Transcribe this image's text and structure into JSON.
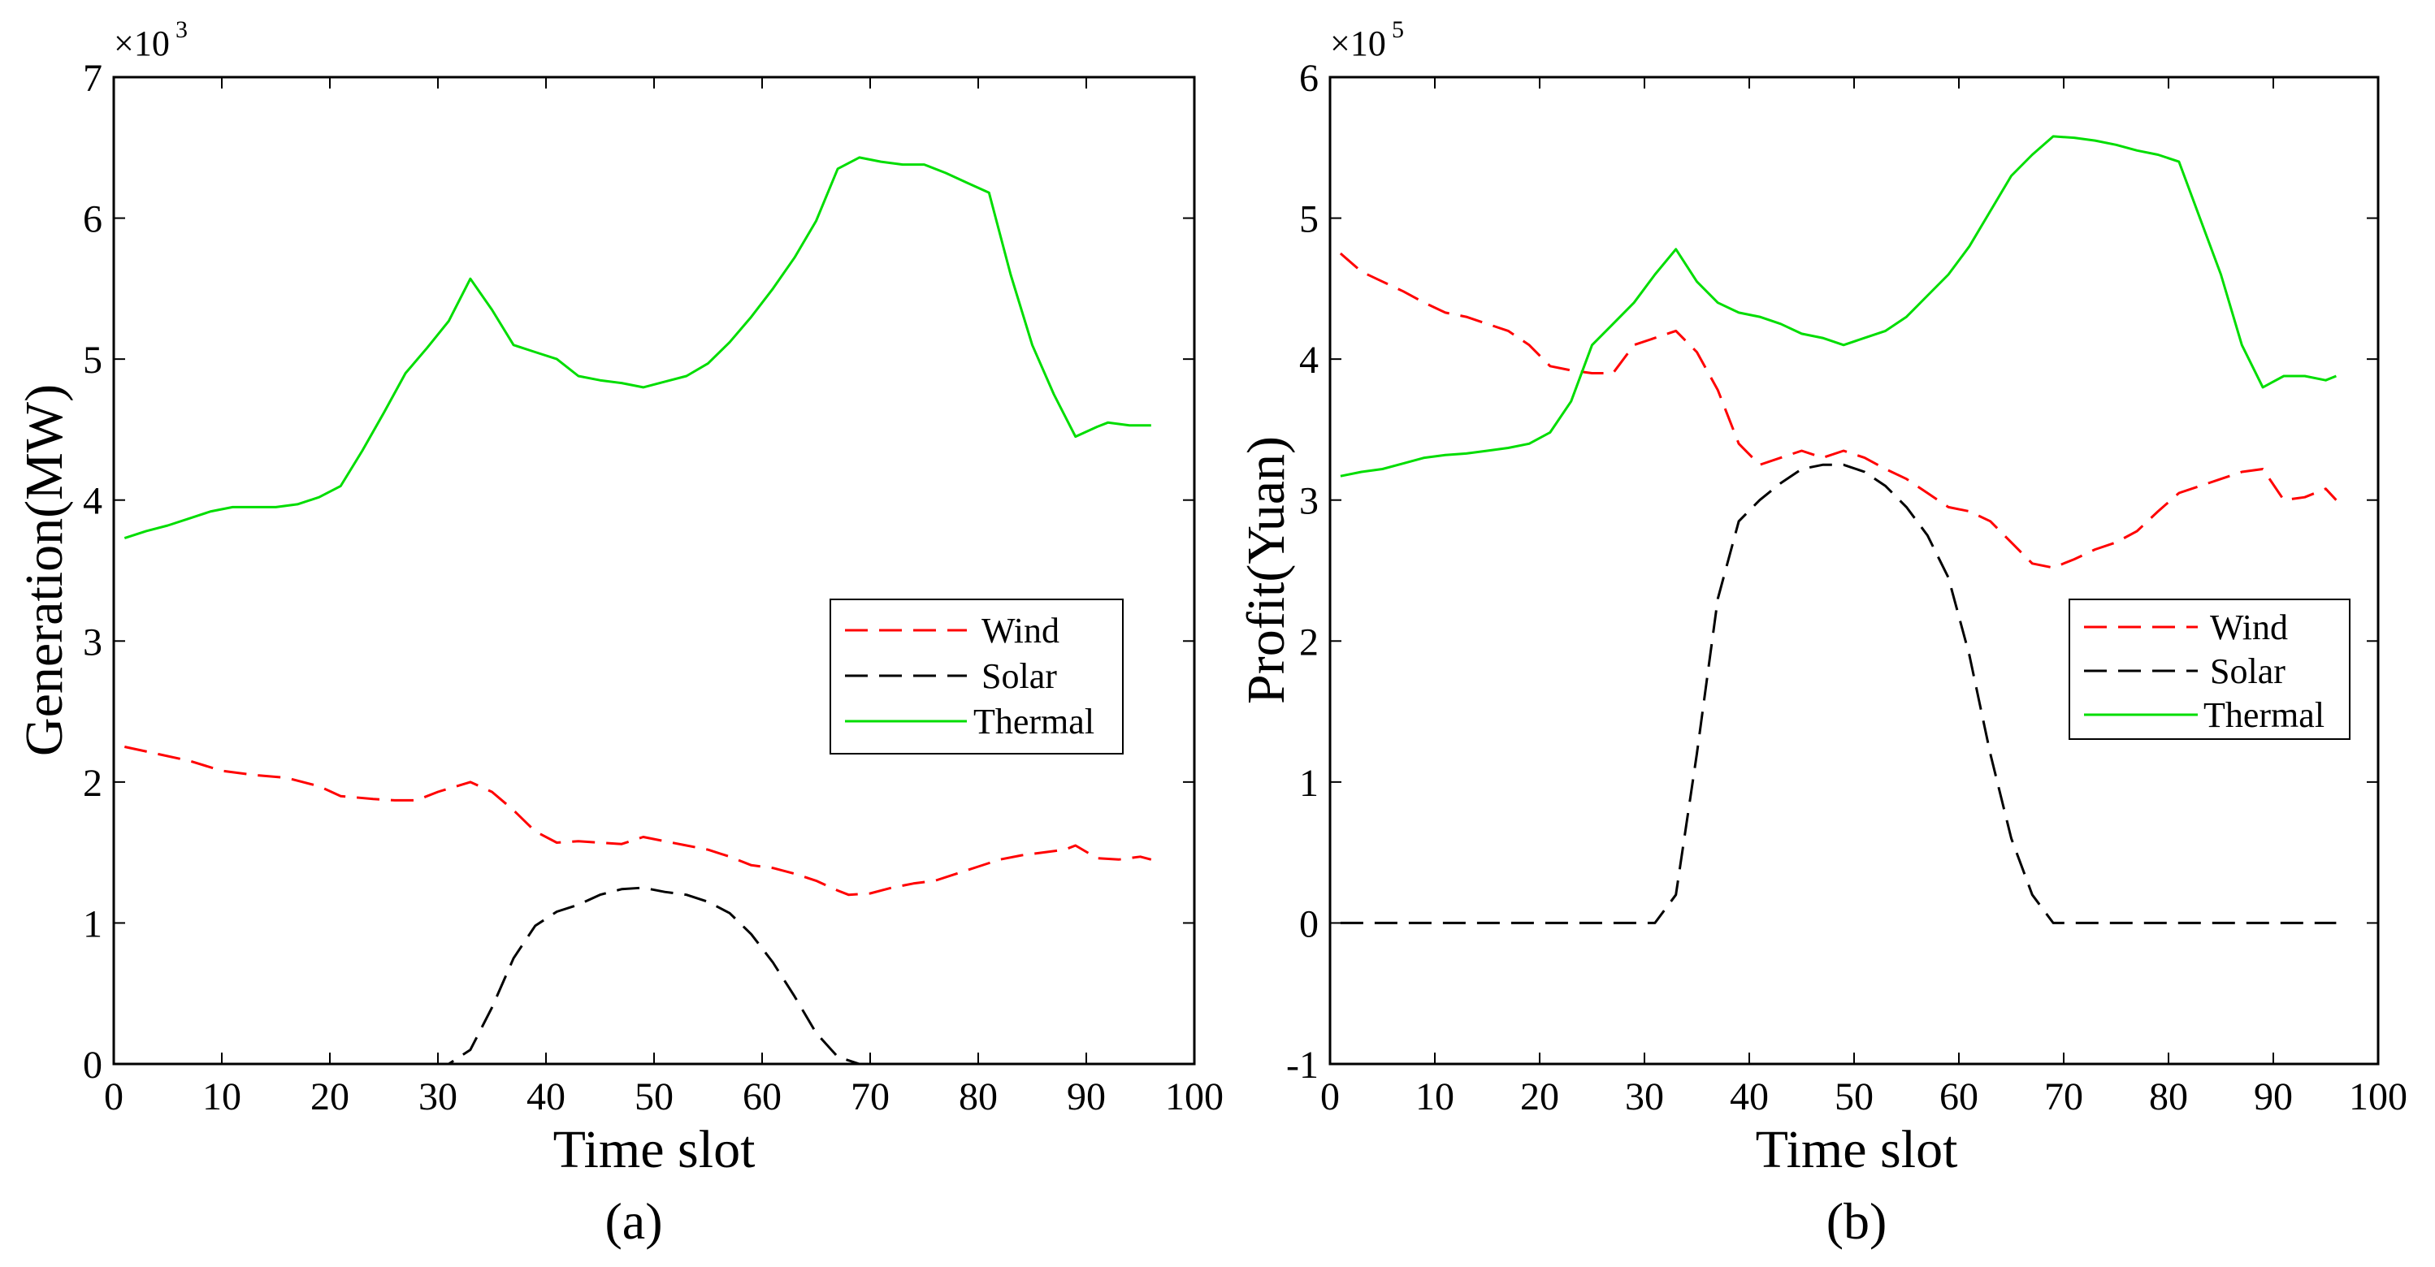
{
  "chart_data": [
    {
      "id": "a",
      "type": "line",
      "caption": "(a)",
      "xlabel": "Time slot",
      "ylabel": "Generation(MW)",
      "y_scale_base": "×10",
      "y_scale_exp": "3",
      "xlim": [
        0,
        100
      ],
      "ylim": [
        0,
        7
      ],
      "xticks": [
        0,
        10,
        20,
        30,
        40,
        50,
        60,
        70,
        80,
        90,
        100
      ],
      "yticks": [
        0,
        1,
        2,
        3,
        4,
        5,
        6,
        7
      ],
      "legend": {
        "position": "right-middle",
        "entries": [
          "Wind",
          "Solar",
          "Thermal"
        ]
      },
      "series": [
        {
          "name": "Wind",
          "color": "#ff0000",
          "dash": "dashed",
          "points": [
            [
              1,
              2.25
            ],
            [
              4,
              2.2
            ],
            [
              7,
              2.15
            ],
            [
              10,
              2.08
            ],
            [
              13,
              2.05
            ],
            [
              16,
              2.03
            ],
            [
              19,
              1.97
            ],
            [
              21,
              1.9
            ],
            [
              24,
              1.88
            ],
            [
              26,
              1.87
            ],
            [
              28,
              1.87
            ],
            [
              30,
              1.93
            ],
            [
              33,
              2.0
            ],
            [
              35,
              1.93
            ],
            [
              37,
              1.8
            ],
            [
              39,
              1.65
            ],
            [
              41,
              1.57
            ],
            [
              43,
              1.58
            ],
            [
              45,
              1.57
            ],
            [
              47,
              1.56
            ],
            [
              49,
              1.61
            ],
            [
              51,
              1.58
            ],
            [
              53,
              1.55
            ],
            [
              55,
              1.52
            ],
            [
              57,
              1.47
            ],
            [
              59,
              1.41
            ],
            [
              61,
              1.39
            ],
            [
              63,
              1.35
            ],
            [
              65,
              1.3
            ],
            [
              67,
              1.23
            ],
            [
              68,
              1.2
            ],
            [
              70,
              1.21
            ],
            [
              72,
              1.25
            ],
            [
              74,
              1.28
            ],
            [
              76,
              1.3
            ],
            [
              78,
              1.35
            ],
            [
              80,
              1.4
            ],
            [
              82,
              1.45
            ],
            [
              84,
              1.48
            ],
            [
              86,
              1.5
            ],
            [
              88,
              1.52
            ],
            [
              89,
              1.55
            ],
            [
              91,
              1.46
            ],
            [
              93,
              1.45
            ],
            [
              95,
              1.47
            ],
            [
              96,
              1.45
            ]
          ]
        },
        {
          "name": "Solar",
          "color": "#000000",
          "dash": "dashed",
          "points": [
            [
              1,
              0
            ],
            [
              31,
              0
            ],
            [
              33,
              0.1
            ],
            [
              35,
              0.4
            ],
            [
              37,
              0.75
            ],
            [
              39,
              0.98
            ],
            [
              41,
              1.08
            ],
            [
              43,
              1.13
            ],
            [
              45,
              1.2
            ],
            [
              47,
              1.24
            ],
            [
              49,
              1.25
            ],
            [
              51,
              1.22
            ],
            [
              53,
              1.2
            ],
            [
              55,
              1.15
            ],
            [
              57,
              1.07
            ],
            [
              59,
              0.92
            ],
            [
              61,
              0.72
            ],
            [
              63,
              0.48
            ],
            [
              65,
              0.22
            ],
            [
              67,
              0.05
            ],
            [
              69,
              0
            ],
            [
              96,
              0
            ]
          ]
        },
        {
          "name": "Thermal",
          "color": "#00dd00",
          "dash": "solid",
          "points": [
            [
              1,
              3.73
            ],
            [
              3,
              3.78
            ],
            [
              5,
              3.82
            ],
            [
              7,
              3.87
            ],
            [
              9,
              3.92
            ],
            [
              11,
              3.95
            ],
            [
              13,
              3.95
            ],
            [
              15,
              3.95
            ],
            [
              17,
              3.97
            ],
            [
              19,
              4.02
            ],
            [
              21,
              4.1
            ],
            [
              23,
              4.35
            ],
            [
              25,
              4.62
            ],
            [
              27,
              4.9
            ],
            [
              29,
              5.08
            ],
            [
              31,
              5.27
            ],
            [
              33,
              5.57
            ],
            [
              35,
              5.35
            ],
            [
              37,
              5.1
            ],
            [
              39,
              5.05
            ],
            [
              41,
              5.0
            ],
            [
              43,
              4.88
            ],
            [
              45,
              4.85
            ],
            [
              47,
              4.83
            ],
            [
              49,
              4.8
            ],
            [
              51,
              4.84
            ],
            [
              53,
              4.88
            ],
            [
              55,
              4.97
            ],
            [
              57,
              5.12
            ],
            [
              59,
              5.3
            ],
            [
              61,
              5.5
            ],
            [
              63,
              5.72
            ],
            [
              65,
              5.98
            ],
            [
              67,
              6.35
            ],
            [
              69,
              6.43
            ],
            [
              71,
              6.4
            ],
            [
              73,
              6.38
            ],
            [
              75,
              6.38
            ],
            [
              77,
              6.32
            ],
            [
              79,
              6.25
            ],
            [
              81,
              6.18
            ],
            [
              83,
              5.6
            ],
            [
              85,
              5.1
            ],
            [
              87,
              4.75
            ],
            [
              89,
              4.45
            ],
            [
              91,
              4.52
            ],
            [
              92,
              4.55
            ],
            [
              94,
              4.53
            ],
            [
              96,
              4.53
            ]
          ]
        }
      ]
    },
    {
      "id": "b",
      "type": "line",
      "caption": "(b)",
      "xlabel": "Time slot",
      "ylabel": "Profit(Yuan)",
      "y_scale_base": "×10",
      "y_scale_exp": "5",
      "xlim": [
        0,
        100
      ],
      "ylim": [
        -1,
        6
      ],
      "xticks": [
        0,
        10,
        20,
        30,
        40,
        50,
        60,
        70,
        80,
        90,
        100
      ],
      "yticks": [
        -1,
        0,
        1,
        2,
        3,
        4,
        5,
        6
      ],
      "legend": {
        "position": "right-middle",
        "entries": [
          "Wind",
          "Solar",
          "Thermal"
        ]
      },
      "series": [
        {
          "name": "Wind",
          "color": "#ff0000",
          "dash": "dashed",
          "points": [
            [
              1,
              4.75
            ],
            [
              3,
              4.62
            ],
            [
              5,
              4.55
            ],
            [
              7,
              4.48
            ],
            [
              9,
              4.4
            ],
            [
              11,
              4.33
            ],
            [
              13,
              4.3
            ],
            [
              15,
              4.25
            ],
            [
              17,
              4.2
            ],
            [
              19,
              4.1
            ],
            [
              21,
              3.95
            ],
            [
              23,
              3.92
            ],
            [
              25,
              3.9
            ],
            [
              27,
              3.9
            ],
            [
              29,
              4.1
            ],
            [
              31,
              4.15
            ],
            [
              33,
              4.2
            ],
            [
              35,
              4.05
            ],
            [
              37,
              3.78
            ],
            [
              39,
              3.4
            ],
            [
              41,
              3.25
            ],
            [
              43,
              3.3
            ],
            [
              45,
              3.35
            ],
            [
              47,
              3.3
            ],
            [
              49,
              3.35
            ],
            [
              51,
              3.3
            ],
            [
              53,
              3.22
            ],
            [
              55,
              3.15
            ],
            [
              57,
              3.05
            ],
            [
              59,
              2.95
            ],
            [
              61,
              2.92
            ],
            [
              63,
              2.85
            ],
            [
              65,
              2.7
            ],
            [
              67,
              2.55
            ],
            [
              69,
              2.52
            ],
            [
              71,
              2.58
            ],
            [
              73,
              2.65
            ],
            [
              75,
              2.7
            ],
            [
              77,
              2.78
            ],
            [
              79,
              2.92
            ],
            [
              81,
              3.05
            ],
            [
              83,
              3.1
            ],
            [
              85,
              3.15
            ],
            [
              87,
              3.2
            ],
            [
              89,
              3.22
            ],
            [
              91,
              3.0
            ],
            [
              93,
              3.02
            ],
            [
              95,
              3.08
            ],
            [
              96,
              3.0
            ]
          ]
        },
        {
          "name": "Solar",
          "color": "#000000",
          "dash": "dashed",
          "points": [
            [
              1,
              0
            ],
            [
              31,
              0
            ],
            [
              33,
              0.2
            ],
            [
              35,
              1.2
            ],
            [
              37,
              2.3
            ],
            [
              39,
              2.85
            ],
            [
              41,
              3.0
            ],
            [
              43,
              3.12
            ],
            [
              45,
              3.22
            ],
            [
              47,
              3.25
            ],
            [
              49,
              3.25
            ],
            [
              51,
              3.2
            ],
            [
              53,
              3.1
            ],
            [
              55,
              2.95
            ],
            [
              57,
              2.75
            ],
            [
              59,
              2.45
            ],
            [
              61,
              1.9
            ],
            [
              63,
              1.2
            ],
            [
              65,
              0.6
            ],
            [
              67,
              0.2
            ],
            [
              69,
              0
            ],
            [
              96,
              0
            ]
          ]
        },
        {
          "name": "Thermal",
          "color": "#00dd00",
          "dash": "solid",
          "points": [
            [
              1,
              3.17
            ],
            [
              3,
              3.2
            ],
            [
              5,
              3.22
            ],
            [
              7,
              3.26
            ],
            [
              9,
              3.3
            ],
            [
              11,
              3.32
            ],
            [
              13,
              3.33
            ],
            [
              15,
              3.35
            ],
            [
              17,
              3.37
            ],
            [
              19,
              3.4
            ],
            [
              21,
              3.48
            ],
            [
              23,
              3.7
            ],
            [
              25,
              4.1
            ],
            [
              27,
              4.25
            ],
            [
              29,
              4.4
            ],
            [
              31,
              4.6
            ],
            [
              33,
              4.78
            ],
            [
              35,
              4.55
            ],
            [
              37,
              4.4
            ],
            [
              39,
              4.33
            ],
            [
              41,
              4.3
            ],
            [
              43,
              4.25
            ],
            [
              45,
              4.18
            ],
            [
              47,
              4.15
            ],
            [
              49,
              4.1
            ],
            [
              51,
              4.15
            ],
            [
              53,
              4.2
            ],
            [
              55,
              4.3
            ],
            [
              57,
              4.45
            ],
            [
              59,
              4.6
            ],
            [
              61,
              4.8
            ],
            [
              63,
              5.05
            ],
            [
              65,
              5.3
            ],
            [
              67,
              5.45
            ],
            [
              69,
              5.58
            ],
            [
              71,
              5.57
            ],
            [
              73,
              5.55
            ],
            [
              75,
              5.52
            ],
            [
              77,
              5.48
            ],
            [
              79,
              5.45
            ],
            [
              81,
              5.4
            ],
            [
              83,
              5.0
            ],
            [
              85,
              4.6
            ],
            [
              87,
              4.1
            ],
            [
              89,
              3.8
            ],
            [
              91,
              3.88
            ],
            [
              93,
              3.88
            ],
            [
              95,
              3.85
            ],
            [
              96,
              3.88
            ]
          ]
        }
      ]
    }
  ]
}
